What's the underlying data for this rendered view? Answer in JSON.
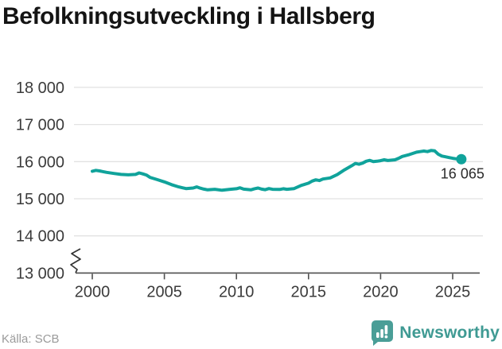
{
  "title": "Befolkningsutveckling i Hallsberg",
  "source": "Källa: SCB",
  "branding": {
    "name": "Newsworthy",
    "logo_icon": "speech-bubble-bar-chart-icon"
  },
  "annotation": {
    "last_value_label": "16 065"
  },
  "colors": {
    "line": "#10a39b",
    "grid": "#e2e2e2",
    "axis": "#4f4f4f",
    "tick_text": "#3b3b3b",
    "title_text": "#141414",
    "source_text": "#9b9b9b",
    "brand_teal": "#4a9e97"
  },
  "chart_data": {
    "type": "line",
    "title": "Befolkningsutveckling i Hallsberg",
    "xlabel": "",
    "ylabel": "",
    "grid": "horizontal",
    "axis_break_bottom": true,
    "xlim": [
      1998.8,
      2027.4
    ],
    "ylim": [
      13000,
      18000
    ],
    "xticks": [
      {
        "value": 2000,
        "label": "2000"
      },
      {
        "value": 2005,
        "label": "2005"
      },
      {
        "value": 2010,
        "label": "2010"
      },
      {
        "value": 2015,
        "label": "2015"
      },
      {
        "value": 2020,
        "label": "2020"
      },
      {
        "value": 2025,
        "label": "2025"
      }
    ],
    "yticks": [
      {
        "value": 13000,
        "label": "13 000"
      },
      {
        "value": 14000,
        "label": "14 000"
      },
      {
        "value": 15000,
        "label": "15 000"
      },
      {
        "value": 16000,
        "label": "16 000"
      },
      {
        "value": 17000,
        "label": "17 000"
      },
      {
        "value": 18000,
        "label": "18 000"
      }
    ],
    "series": [
      {
        "name": "Befolkning",
        "color": "#10a39b",
        "points": [
          [
            2000.0,
            15740
          ],
          [
            2000.25,
            15765
          ],
          [
            2000.5,
            15750
          ],
          [
            2000.75,
            15730
          ],
          [
            2001.0,
            15710
          ],
          [
            2001.5,
            15680
          ],
          [
            2002.0,
            15655
          ],
          [
            2002.5,
            15645
          ],
          [
            2003.0,
            15655
          ],
          [
            2003.25,
            15695
          ],
          [
            2003.5,
            15670
          ],
          [
            2003.75,
            15640
          ],
          [
            2004.0,
            15575
          ],
          [
            2004.5,
            15515
          ],
          [
            2005.0,
            15455
          ],
          [
            2005.5,
            15380
          ],
          [
            2006.0,
            15320
          ],
          [
            2006.25,
            15295
          ],
          [
            2006.5,
            15275
          ],
          [
            2007.0,
            15290
          ],
          [
            2007.25,
            15320
          ],
          [
            2007.5,
            15285
          ],
          [
            2007.75,
            15260
          ],
          [
            2008.0,
            15240
          ],
          [
            2008.5,
            15255
          ],
          [
            2009.0,
            15230
          ],
          [
            2009.5,
            15250
          ],
          [
            2010.0,
            15270
          ],
          [
            2010.25,
            15295
          ],
          [
            2010.5,
            15260
          ],
          [
            2011.0,
            15240
          ],
          [
            2011.25,
            15270
          ],
          [
            2011.5,
            15290
          ],
          [
            2011.75,
            15260
          ],
          [
            2012.0,
            15245
          ],
          [
            2012.25,
            15275
          ],
          [
            2012.5,
            15255
          ],
          [
            2013.0,
            15250
          ],
          [
            2013.25,
            15270
          ],
          [
            2013.5,
            15255
          ],
          [
            2014.0,
            15275
          ],
          [
            2014.5,
            15360
          ],
          [
            2015.0,
            15420
          ],
          [
            2015.25,
            15475
          ],
          [
            2015.5,
            15510
          ],
          [
            2015.75,
            15490
          ],
          [
            2016.0,
            15530
          ],
          [
            2016.5,
            15560
          ],
          [
            2017.0,
            15650
          ],
          [
            2017.5,
            15780
          ],
          [
            2018.0,
            15890
          ],
          [
            2018.25,
            15950
          ],
          [
            2018.5,
            15930
          ],
          [
            2018.75,
            15960
          ],
          [
            2019.0,
            16010
          ],
          [
            2019.25,
            16035
          ],
          [
            2019.5,
            16000
          ],
          [
            2019.75,
            16010
          ],
          [
            2020.0,
            16025
          ],
          [
            2020.25,
            16050
          ],
          [
            2020.5,
            16030
          ],
          [
            2021.0,
            16050
          ],
          [
            2021.25,
            16090
          ],
          [
            2021.5,
            16140
          ],
          [
            2022.0,
            16190
          ],
          [
            2022.5,
            16255
          ],
          [
            2022.75,
            16270
          ],
          [
            2023.0,
            16285
          ],
          [
            2023.25,
            16270
          ],
          [
            2023.5,
            16300
          ],
          [
            2023.75,
            16290
          ],
          [
            2024.0,
            16200
          ],
          [
            2024.25,
            16150
          ],
          [
            2024.5,
            16130
          ],
          [
            2024.75,
            16110
          ],
          [
            2025.0,
            16090
          ],
          [
            2025.25,
            16075
          ],
          [
            2025.6,
            16065
          ]
        ]
      }
    ],
    "last_point": {
      "x": 2025.6,
      "y": 16065,
      "label": "16 065"
    },
    "legend": "none"
  }
}
